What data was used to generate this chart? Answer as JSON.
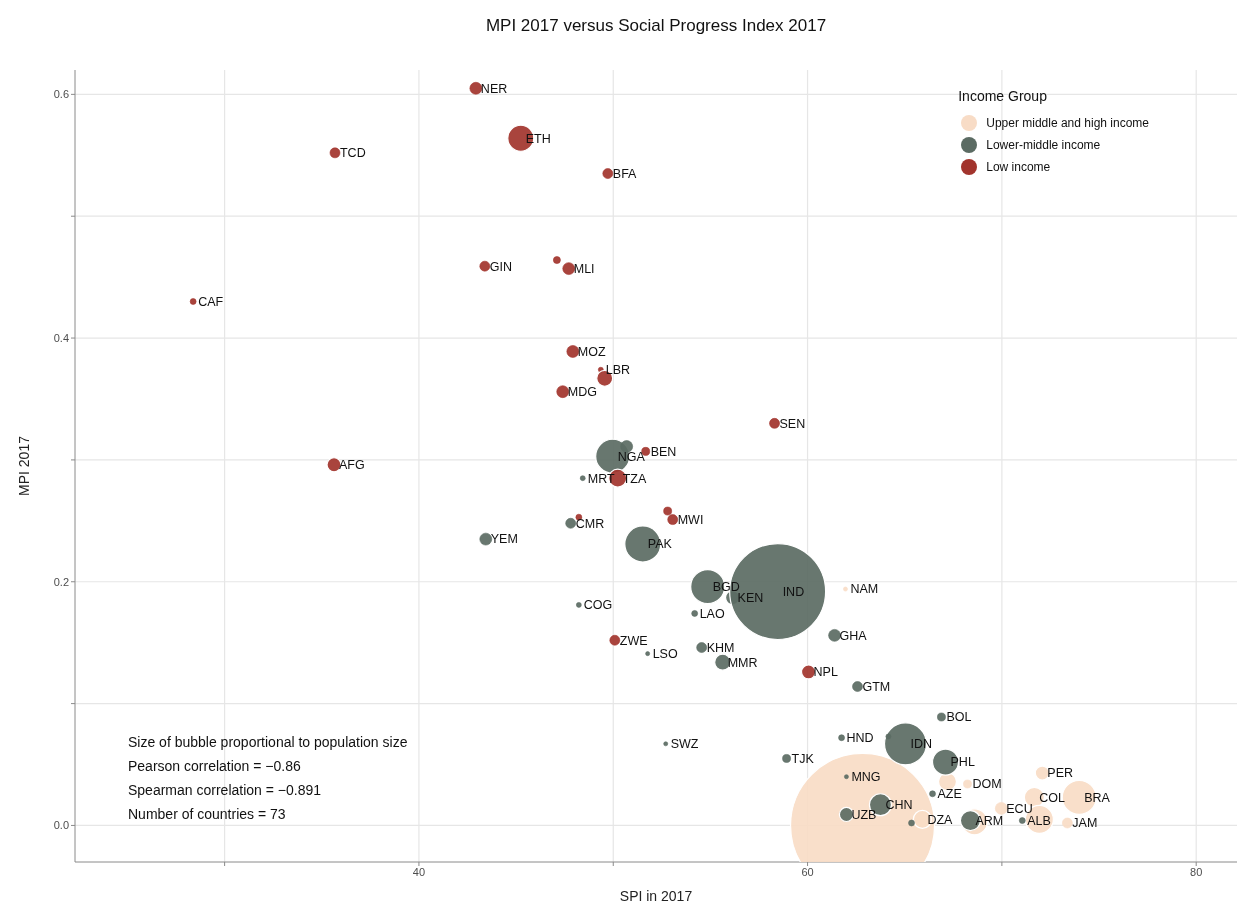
{
  "chart_data": {
    "type": "bubble",
    "title": "MPI 2017 versus Social Progress Index 2017",
    "xlabel": "SPI in 2017",
    "ylabel": "MPI 2017",
    "legend_title": "Income Group",
    "xlim": [
      22.3,
      82.1
    ],
    "ylim": [
      -0.03,
      0.62
    ],
    "xticks": [
      {
        "value": 30,
        "label": null
      },
      40,
      {
        "value": 50,
        "label": null
      },
      60,
      {
        "value": 70,
        "label": null
      },
      80
    ],
    "yticks": [
      {
        "value": 0,
        "label": "0.0"
      },
      {
        "value": 0.1,
        "label": null
      },
      0.2,
      {
        "value": 0.3,
        "label": null
      },
      0.4,
      {
        "value": 0.5,
        "label": null
      },
      0.6
    ],
    "grid": true,
    "legend": "top right",
    "series": [
      {
        "name": "Upper middle and high income",
        "color": "#f8dcc6",
        "x": [
          62.83,
          67.2,
          68.23,
          72.08,
          71.67,
          73.98,
          69.97,
          71.93,
          73.37,
          65.91,
          68.59,
          61.95
        ],
        "values": [
          0.0,
          0.036,
          0.034,
          0.043,
          0.023,
          0.023,
          0.014,
          0.005,
          0.002,
          0.005,
          0.003,
          0.194
        ],
        "sizes": [
          1,
          0.0156,
          0.0031,
          0.0095,
          0.0193,
          0.0557,
          0.0069,
          0.0378,
          0.0048,
          0.0156,
          0.0326,
          0.0008
        ]
      },
      {
        "name": "Lower-middle income",
        "color": "#5b6b63",
        "x": [
          49.97,
          50.69,
          48.43,
          47.81,
          43.44,
          51.52,
          54.86,
          56.14,
          58.46,
          48.23,
          54.19,
          61.39,
          54.55,
          51.77,
          55.63,
          62.57,
          66.89,
          61.75,
          65.04,
          64.16,
          58.92,
          67.1,
          62.0,
          63.75,
          62.0,
          66.43,
          65.35,
          68.38,
          71.05,
          52.7
        ],
        "values": [
          0.303,
          0.311,
          0.285,
          0.248,
          0.235,
          0.231,
          0.196,
          0.187,
          0.192,
          0.181,
          0.174,
          0.156,
          0.146,
          0.141,
          0.134,
          0.114,
          0.089,
          0.072,
          0.067,
          0.073,
          0.055,
          0.052,
          0.04,
          0.017,
          0.009,
          0.026,
          0.002,
          0.004,
          0.004,
          0.067
        ],
        "sizes": [
          0.0557,
          0.0069,
          0.0012,
          0.0048,
          0.0069,
          0.0625,
          0.0557,
          0.0095,
          0.444,
          0.0012,
          0.0017,
          0.0069,
          0.0048,
          0.0008,
          0.0123,
          0.0048,
          0.0031,
          0.0017,
          0.0851,
          0.0012,
          0.0031,
          0.0326,
          0.0008,
          0.0233,
          0.0095,
          0.0017,
          0.0017,
          0.0193,
          0.0017,
          0.0008
        ]
      },
      {
        "name": "Low income",
        "color": "#a2342d",
        "x": [
          42.93,
          45.24,
          35.68,
          49.72,
          43.39,
          47.1,
          47.71,
          28.38,
          47.92,
          49.36,
          49.56,
          47.4,
          35.63,
          51.67,
          50.23,
          48.23,
          52.8,
          53.06,
          50.08,
          58.3,
          60.05
        ],
        "values": [
          0.605,
          0.564,
          0.552,
          0.535,
          0.459,
          0.464,
          0.457,
          0.43,
          0.389,
          0.374,
          0.367,
          0.356,
          0.296,
          0.307,
          0.285,
          0.253,
          0.258,
          0.251,
          0.152,
          0.33,
          0.126
        ],
        "sizes": [
          0.0069,
          0.0326,
          0.0048,
          0.0048,
          0.0048,
          0.0024,
          0.0069,
          0.0017,
          0.0069,
          0.0012,
          0.0123,
          0.0069,
          0.0095,
          0.0031,
          0.0156,
          0.0017,
          0.0031,
          0.0048,
          0.0048,
          0.0048,
          0.0095
        ]
      }
    ],
    "annotations": [
      {
        "text": "NER",
        "x": 42.93,
        "y": 0.605
      },
      {
        "text": "ETH",
        "x": 45.24,
        "y": 0.564
      },
      {
        "text": "TCD",
        "x": 35.68,
        "y": 0.552
      },
      {
        "text": "BFA",
        "x": 49.72,
        "y": 0.535
      },
      {
        "text": "GIN",
        "x": 43.39,
        "y": 0.459
      },
      {
        "text": "MLI",
        "x": 47.71,
        "y": 0.457
      },
      {
        "text": "CAF",
        "x": 28.38,
        "y": 0.43
      },
      {
        "text": "MOZ",
        "x": 47.92,
        "y": 0.389
      },
      {
        "text": "LBR",
        "x": 49.36,
        "y": 0.374
      },
      {
        "text": "MDG",
        "x": 47.4,
        "y": 0.356
      },
      {
        "text": "AFG",
        "x": 35.63,
        "y": 0.296
      },
      {
        "text": "BEN",
        "x": 51.67,
        "y": 0.307
      },
      {
        "text": "NGA",
        "x": 49.97,
        "y": 0.303
      },
      {
        "text": "MRT",
        "x": 48.43,
        "y": 0.285
      },
      {
        "text": "TZA",
        "x": 50.23,
        "y": 0.285
      },
      {
        "text": "CMR",
        "x": 47.81,
        "y": 0.248
      },
      {
        "text": "MWI",
        "x": 53.06,
        "y": 0.251
      },
      {
        "text": "YEM",
        "x": 43.44,
        "y": 0.235
      },
      {
        "text": "PAK",
        "x": 51.52,
        "y": 0.231
      },
      {
        "text": "BGD",
        "x": 54.86,
        "y": 0.196
      },
      {
        "text": "KEN",
        "x": 56.14,
        "y": 0.187
      },
      {
        "text": "IND",
        "x": 58.46,
        "y": 0.192
      },
      {
        "text": "NAM",
        "x": 61.95,
        "y": 0.194
      },
      {
        "text": "COG",
        "x": 48.23,
        "y": 0.181
      },
      {
        "text": "LAO",
        "x": 54.19,
        "y": 0.174
      },
      {
        "text": "SEN",
        "x": 58.3,
        "y": 0.33
      },
      {
        "text": "ZWE",
        "x": 50.08,
        "y": 0.152
      },
      {
        "text": "GHA",
        "x": 61.39,
        "y": 0.156
      },
      {
        "text": "KHM",
        "x": 54.55,
        "y": 0.146
      },
      {
        "text": "LSO",
        "x": 51.77,
        "y": 0.141
      },
      {
        "text": "MMR",
        "x": 55.63,
        "y": 0.134
      },
      {
        "text": "NPL",
        "x": 60.05,
        "y": 0.126
      },
      {
        "text": "GTM",
        "x": 62.57,
        "y": 0.114
      },
      {
        "text": "BOL",
        "x": 66.89,
        "y": 0.089
      },
      {
        "text": "HND",
        "x": 61.75,
        "y": 0.072
      },
      {
        "text": "IDN",
        "x": 65.04,
        "y": 0.067
      },
      {
        "text": "SWZ",
        "x": 52.7,
        "y": 0.067
      },
      {
        "text": "TJK",
        "x": 58.92,
        "y": 0.055
      },
      {
        "text": "PHL",
        "x": 67.1,
        "y": 0.052
      },
      {
        "text": "MNG",
        "x": 62.0,
        "y": 0.04
      },
      {
        "text": "PER",
        "x": 72.08,
        "y": 0.043
      },
      {
        "text": "DOM",
        "x": 68.23,
        "y": 0.034
      },
      {
        "text": "AZE",
        "x": 66.43,
        "y": 0.026
      },
      {
        "text": "COL",
        "x": 71.67,
        "y": 0.023
      },
      {
        "text": "BRA",
        "x": 73.98,
        "y": 0.023
      },
      {
        "text": "CHN",
        "x": 63.75,
        "y": 0.017
      },
      {
        "text": "ECU",
        "x": 69.97,
        "y": 0.014
      },
      {
        "text": "UZB",
        "x": 62.0,
        "y": 0.009
      },
      {
        "text": "DZA",
        "x": 65.91,
        "y": 0.005
      },
      {
        "text": "ARM",
        "x": 68.38,
        "y": 0.004
      },
      {
        "text": "ALB",
        "x": 71.05,
        "y": 0.004
      },
      {
        "text": "JAM",
        "x": 73.37,
        "y": 0.002
      },
      "Size of bubble proportional to population size",
      "Pearson correlation = −0.86",
      "Spearman correlation = −0.891",
      "Number of countries = 73"
    ]
  }
}
